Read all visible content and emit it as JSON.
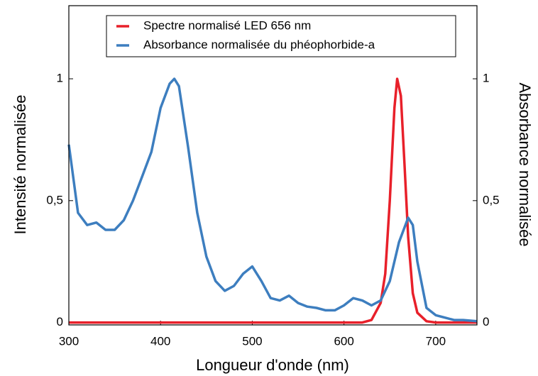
{
  "chart_data": {
    "type": "line",
    "xlabel": "Longueur d'onde (nm)",
    "ylabel": "Intensité normalisée",
    "y2label": "Absorbance normalisée",
    "xlim": [
      300,
      745
    ],
    "xticks": [
      300,
      400,
      500,
      600,
      700
    ],
    "ylim": [
      -0.01,
      1.3
    ],
    "yticks": [
      0,
      {
        "value": 0.5,
        "label": "0,5"
      },
      1
    ],
    "y2lim": [
      -0.01,
      1.3
    ],
    "y2ticks": [
      0,
      {
        "value": 0.5,
        "label": "0,5"
      },
      1
    ],
    "legend": "upper center",
    "series": [
      {
        "name": "Spectre normalisé LED 656 nm",
        "color": "#e8202a",
        "x": [
          300,
          400,
          500,
          600,
          620,
          630,
          640,
          645,
          650,
          655,
          658,
          662,
          666,
          670,
          675,
          680,
          690,
          700,
          745
        ],
        "values": [
          0,
          0,
          0,
          0,
          0,
          0.01,
          0.08,
          0.2,
          0.5,
          0.88,
          1.0,
          0.93,
          0.65,
          0.35,
          0.12,
          0.04,
          0.005,
          0,
          0
        ]
      },
      {
        "name": "Absorbance normalisée du phéophorbide-a",
        "color": "#3d7ebf",
        "axis": "y2",
        "x": [
          300,
          310,
          320,
          330,
          340,
          350,
          360,
          370,
          380,
          390,
          400,
          410,
          415,
          420,
          430,
          440,
          450,
          460,
          470,
          480,
          490,
          500,
          510,
          520,
          530,
          540,
          550,
          560,
          570,
          580,
          590,
          600,
          610,
          620,
          630,
          640,
          650,
          660,
          670,
          675,
          680,
          690,
          700,
          710,
          720,
          730,
          745
        ],
        "values": [
          0.73,
          0.45,
          0.4,
          0.41,
          0.38,
          0.38,
          0.42,
          0.5,
          0.6,
          0.7,
          0.88,
          0.98,
          1.0,
          0.97,
          0.72,
          0.45,
          0.27,
          0.17,
          0.13,
          0.15,
          0.2,
          0.23,
          0.17,
          0.1,
          0.09,
          0.11,
          0.08,
          0.065,
          0.06,
          0.05,
          0.05,
          0.07,
          0.1,
          0.09,
          0.07,
          0.09,
          0.17,
          0.33,
          0.43,
          0.4,
          0.25,
          0.06,
          0.03,
          0.02,
          0.01,
          0.01,
          0.005
        ]
      }
    ]
  }
}
